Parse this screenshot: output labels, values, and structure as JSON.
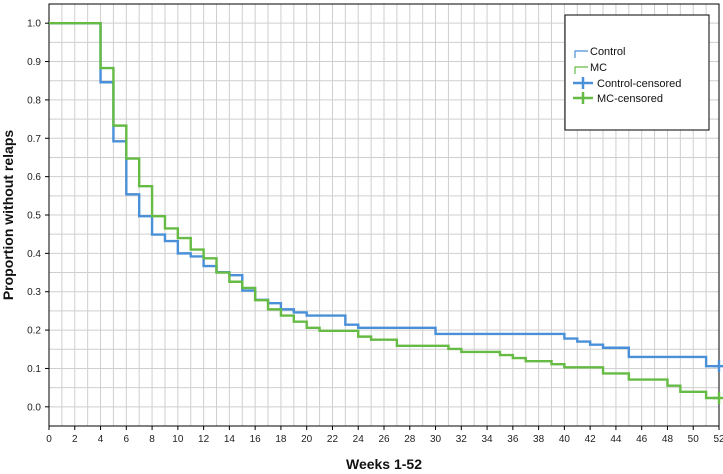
{
  "chart_data": {
    "type": "line",
    "subtype": "kaplan-meier-step",
    "title": "",
    "xlabel": "Weeks 1-52",
    "ylabel": "Proportion without relaps",
    "xlim": [
      0,
      52
    ],
    "ylim": [
      -0.05,
      1.05
    ],
    "x_ticks": [
      "0",
      "2",
      "4",
      "6",
      "8",
      "10",
      "12",
      "14",
      "16",
      "18",
      "20",
      "22",
      "24",
      "26",
      "28",
      "30",
      "32",
      "34",
      "36",
      "38",
      "40",
      "42",
      "44",
      "46",
      "48",
      "50",
      "52"
    ],
    "y_ticks": [
      "0.0",
      "0.1",
      "0.2",
      "0.3",
      "0.4",
      "0.5",
      "0.6",
      "0.7",
      "0.8",
      "0.9",
      "1.0"
    ],
    "grid": true,
    "legend_position": "top-right",
    "legend": [
      "Control",
      "MC",
      "Control-censored",
      "MC-censored"
    ],
    "series": [
      {
        "name": "Control",
        "color": "#4a90d9",
        "x": [
          0,
          4,
          5,
          6,
          7,
          8,
          9,
          10,
          11,
          12,
          13,
          14,
          15,
          16,
          17,
          18,
          19,
          20,
          21,
          22,
          23,
          24,
          25,
          26,
          27,
          28,
          29,
          30,
          31,
          32,
          33,
          34,
          35,
          36,
          37,
          38,
          39,
          40,
          41,
          42,
          43,
          44,
          45,
          46,
          47,
          48,
          49,
          50,
          51,
          52
        ],
        "y": [
          1.0,
          0.846,
          0.692,
          0.554,
          0.497,
          0.449,
          0.432,
          0.4,
          0.392,
          0.367,
          0.351,
          0.343,
          0.303,
          0.279,
          0.27,
          0.254,
          0.246,
          0.238,
          0.238,
          0.238,
          0.214,
          0.206,
          0.206,
          0.206,
          0.206,
          0.206,
          0.206,
          0.19,
          0.19,
          0.19,
          0.19,
          0.19,
          0.19,
          0.19,
          0.19,
          0.19,
          0.19,
          0.178,
          0.17,
          0.162,
          0.154,
          0.154,
          0.13,
          0.13,
          0.13,
          0.13,
          0.13,
          0.13,
          0.106,
          0.106
        ],
        "censored": [
          {
            "x": 52,
            "y": 0.106
          }
        ]
      },
      {
        "name": "MC",
        "color": "#66bb44",
        "x": [
          0,
          4,
          5,
          6,
          7,
          8,
          9,
          10,
          11,
          12,
          13,
          14,
          15,
          16,
          17,
          18,
          19,
          20,
          21,
          22,
          23,
          24,
          25,
          26,
          27,
          28,
          29,
          30,
          31,
          32,
          33,
          34,
          35,
          36,
          37,
          38,
          39,
          40,
          41,
          42,
          43,
          44,
          45,
          46,
          47,
          48,
          49,
          50,
          51,
          52
        ],
        "y": [
          1.0,
          0.883,
          0.733,
          0.647,
          0.575,
          0.497,
          0.465,
          0.44,
          0.41,
          0.387,
          0.35,
          0.326,
          0.31,
          0.278,
          0.254,
          0.238,
          0.222,
          0.206,
          0.198,
          0.198,
          0.198,
          0.183,
          0.175,
          0.175,
          0.159,
          0.159,
          0.159,
          0.159,
          0.151,
          0.143,
          0.143,
          0.143,
          0.135,
          0.127,
          0.119,
          0.119,
          0.111,
          0.103,
          0.103,
          0.103,
          0.087,
          0.087,
          0.071,
          0.071,
          0.071,
          0.055,
          0.039,
          0.039,
          0.023,
          0.023
        ],
        "censored": [
          {
            "x": 52,
            "y": 0.023
          }
        ]
      }
    ]
  }
}
